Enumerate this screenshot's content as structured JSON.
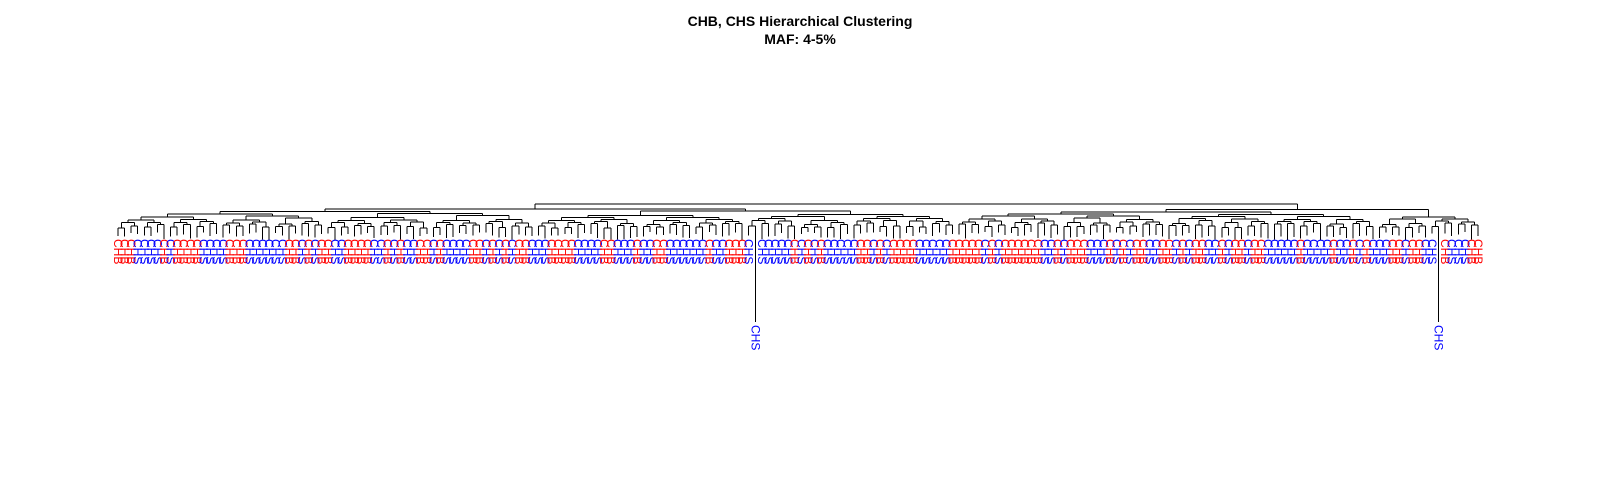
{
  "title": {
    "line1": "CHB, CHS Hierarchical Clustering",
    "line2": "MAF: 4-5%"
  },
  "colors": {
    "CHB": "#ff0000",
    "CHS": "#0000ff",
    "branch": "#000000",
    "background": "#ffffff"
  },
  "chart_data": {
    "type": "dendrogram",
    "leaves": [
      "CHB",
      "CHB",
      "CHB",
      "CHS",
      "CHS",
      "CHS",
      "CHS",
      "CHB",
      "CHS",
      "CHB",
      "CHB",
      "CHB",
      "CHB",
      "CHS",
      "CHS",
      "CHS",
      "CHS",
      "CHB",
      "CHB",
      "CHB",
      "CHS",
      "CHS",
      "CHS",
      "CHS",
      "CHS",
      "CHS",
      "CHB",
      "CHB",
      "CHS",
      "CHB",
      "CHS",
      "CHB",
      "CHB",
      "CHS",
      "CHS",
      "CHB",
      "CHB",
      "CHB",
      "CHB",
      "CHS",
      "CHS",
      "CHB",
      "CHS",
      "CHB",
      "CHS",
      "CHS",
      "CHB",
      "CHB",
      "CHS",
      "CHB",
      "CHS",
      "CHS",
      "CHS",
      "CHS",
      "CHB",
      "CHB",
      "CHS",
      "CHB",
      "CHS",
      "CHB",
      "CHS",
      "CHB",
      "CHB",
      "CHS",
      "CHS",
      "CHS",
      "CHB",
      "CHB",
      "CHB",
      "CHB",
      "CHS",
      "CHS",
      "CHS",
      "CHS",
      "CHB",
      "CHB",
      "CHS",
      "CHS",
      "CHS",
      "CHB",
      "CHS",
      "CHS",
      "CHB",
      "CHB",
      "CHS",
      "CHS",
      "CHS",
      "CHS",
      "CHS",
      "CHS",
      "CHB",
      "CHS",
      "CHS",
      "CHB",
      "CHB",
      "CHB",
      "CHS",
      "CHS",
      "CHS",
      "CHS",
      "CHS",
      "CHS",
      "CHS",
      "CHB",
      "CHS",
      "CHB",
      "CHS",
      "CHB",
      "CHS",
      "CHS",
      "CHS",
      "CHS",
      "CHS",
      "CHB",
      "CHB",
      "CHS",
      "CHB",
      "CHS",
      "CHB",
      "CHB",
      "CHB",
      "CHB",
      "CHS",
      "CHS",
      "CHS",
      "CHS",
      "CHS",
      "CHB",
      "CHB",
      "CHB",
      "CHB",
      "CHB",
      "CHS",
      "CHB",
      "CHS",
      "CHB",
      "CHB",
      "CHB",
      "CHB",
      "CHB",
      "CHB",
      "CHS",
      "CHS",
      "CHB",
      "CHS",
      "CHB",
      "CHB",
      "CHB",
      "CHS",
      "CHS",
      "CHS",
      "CHB",
      "CHS",
      "CHB",
      "CHS",
      "CHB",
      "CHB",
      "CHS",
      "CHS",
      "CHB",
      "CHB",
      "CHS",
      "CHB",
      "CHS",
      "CHB",
      "CHB",
      "CHS",
      "CHS",
      "CHB",
      "CHS",
      "CHB",
      "CHB",
      "CHS",
      "CHB",
      "CHB",
      "CHS",
      "CHS",
      "CHS",
      "CHS",
      "CHS",
      "CHB",
      "CHS",
      "CHS",
      "CHS",
      "CHS",
      "CHB",
      "CHS",
      "CHS",
      "CHB",
      "CHS",
      "CHB",
      "CHS",
      "CHS",
      "CHS",
      "CHB",
      "CHB",
      "CHS",
      "CHB",
      "CHB",
      "CHS",
      "CHS",
      "CHS",
      "CHB",
      "CHS",
      "CHS",
      "CHS",
      "CHB",
      "CHB"
    ],
    "long_branch_leaves": [
      {
        "index": 97,
        "label": "CHS"
      },
      {
        "index": 201,
        "label": "CHS"
      }
    ],
    "leaf_groups": [
      "CHB",
      "CHS"
    ],
    "axes": "none"
  }
}
